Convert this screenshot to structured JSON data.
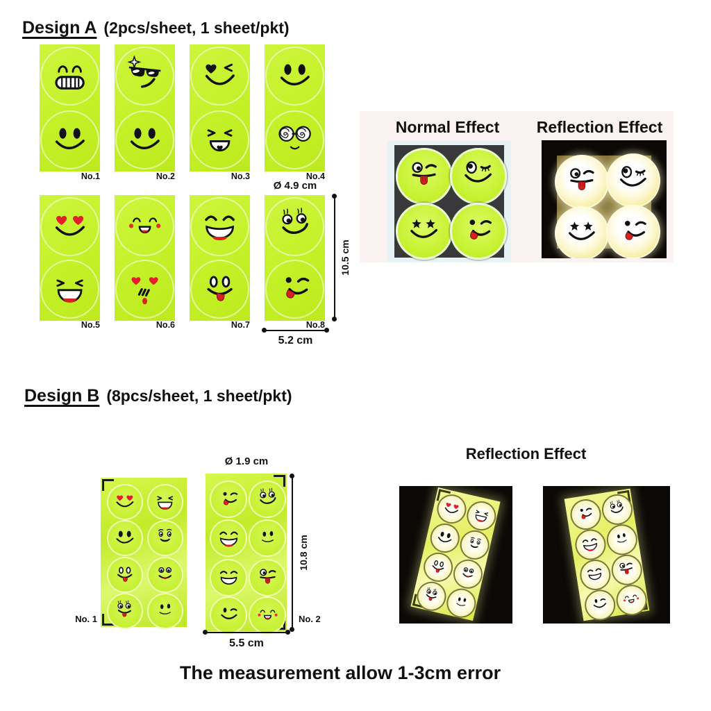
{
  "design_a": {
    "title": "Design A",
    "subtitle": "(2pcs/sheet, 1 sheet/pkt)",
    "sheet_labels": [
      "No.1",
      "No.2",
      "No.3",
      "No.4",
      "No.5",
      "No.6",
      "No.7",
      "No.8"
    ],
    "sheet_faces": [
      [
        "grin-teeth",
        "smile"
      ],
      [
        "sunglasses",
        "smile"
      ],
      [
        "heart-wink",
        "xd-heart"
      ],
      [
        "smile",
        "spiral-glasses"
      ],
      [
        "heart-eyes",
        "xd-laugh"
      ],
      [
        "blush-happy",
        "shy-love"
      ],
      [
        "laugh-open",
        "tongue-out"
      ],
      [
        "lash-smile",
        "wink-lick"
      ]
    ],
    "dimensions": {
      "diameter": "Ø 4.9 cm",
      "height": "10.5 cm",
      "width": "5.2 cm"
    },
    "effects": {
      "normal_title": "Normal Effect",
      "reflection_title": "Reflection Effect",
      "photo_faces": [
        "wink-tongue",
        "wink-lash",
        "star-smile",
        "wink-lick"
      ]
    }
  },
  "design_b": {
    "title": "Design B",
    "subtitle": "(8pcs/sheet, 1 sheet/pkt)",
    "sheet_labels": [
      "No. 1",
      "No. 2"
    ],
    "sheet_faces": [
      [
        "heart-eyes",
        "xd-laugh",
        "smile",
        "brow-smile",
        "tongue-out",
        "big-eye-smile",
        "lash-tongue",
        "calm-smile"
      ],
      [
        "wink-lick",
        "lash-smile",
        "laugh-open",
        "calm-smile",
        "laugh-closed",
        "wink-tongue",
        "wink-smile",
        "blush-happy"
      ]
    ],
    "dimensions": {
      "diameter": "Ø 1.9 cm",
      "height": "10.8 cm",
      "width": "5.5 cm"
    },
    "effects": {
      "reflection_title": "Reflection Effect"
    }
  },
  "footer": "The measurement allow 1-3cm error",
  "colors": {
    "sheet_green": "#c3f128",
    "face_black": "#111111",
    "accent_red": "#e01f2f",
    "photo_black": "#0b0806",
    "photo_area_pink": "#faf3f1",
    "normal_photo_bg": "#e7f2f5",
    "reflection_glow": "#fdf6c0"
  }
}
